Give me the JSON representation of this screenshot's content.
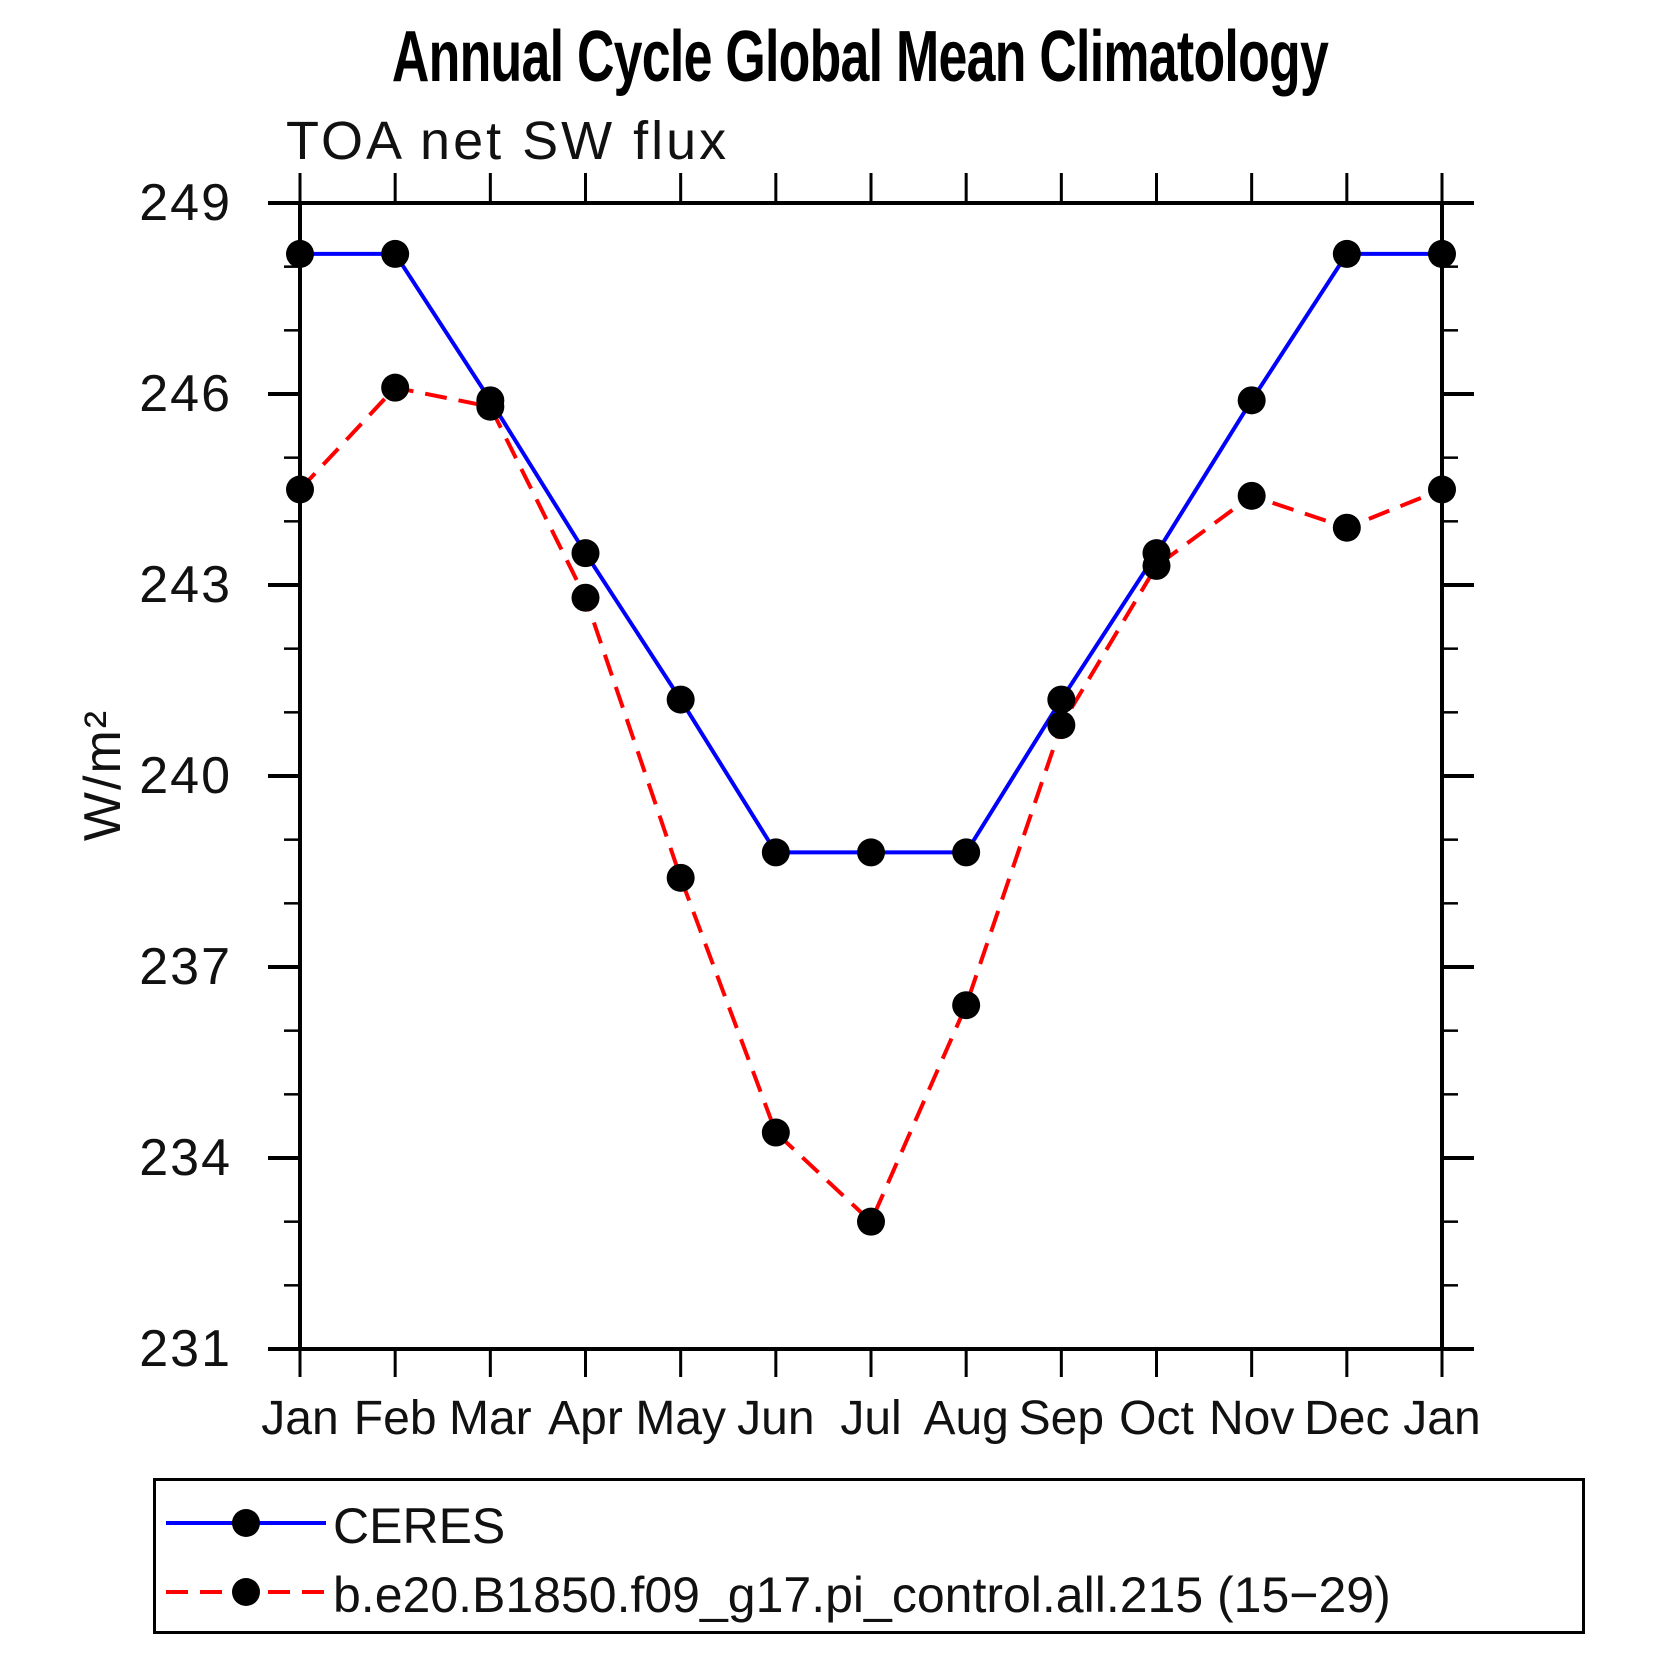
{
  "title": "Annual Cycle Global Mean Climatology",
  "subtitle": "TOA net SW flux",
  "ylabel": "W/m²",
  "colors": {
    "ceres_line": "#0000ff",
    "model_line": "#ff0000",
    "marker": "#000000",
    "axis": "#000000"
  },
  "legend": {
    "entries": [
      {
        "label": "CERES",
        "color": "#0000ff",
        "style": "solid"
      },
      {
        "label": "b.e20.B1850.f09_g17.pi_control.all.215 (15−29)",
        "color": "#ff0000",
        "style": "dashed"
      }
    ]
  },
  "chart_data": {
    "type": "line",
    "title": "Annual Cycle Global Mean Climatology",
    "subtitle": "TOA net SW flux",
    "ylabel": "W/m²",
    "categories": [
      "Jan",
      "Feb",
      "Mar",
      "Apr",
      "May",
      "Jun",
      "Jul",
      "Aug",
      "Sep",
      "Oct",
      "Nov",
      "Dec",
      "Jan"
    ],
    "series": [
      {
        "name": "CERES",
        "color": "#0000ff",
        "line_style": "solid",
        "marker": "circle",
        "marker_color": "#000000",
        "values": [
          248.2,
          248.2,
          245.9,
          243.5,
          241.2,
          238.8,
          238.8,
          238.8,
          241.2,
          243.5,
          245.9,
          248.2,
          248.2
        ]
      },
      {
        "name": "b.e20.B1850.f09_g17.pi_control.all.215 (15−29)",
        "color": "#ff0000",
        "line_style": "dashed",
        "marker": "circle",
        "marker_color": "#000000",
        "values": [
          244.5,
          246.1,
          245.8,
          242.8,
          238.4,
          234.4,
          233.0,
          236.4,
          240.8,
          243.3,
          244.4,
          243.9,
          244.5
        ]
      }
    ],
    "ylim": [
      231,
      249
    ],
    "ytick_major": [
      231,
      234,
      237,
      240,
      243,
      246,
      249
    ],
    "ytick_minor_step": 1,
    "grid": false,
    "legend_position": "bottom"
  }
}
